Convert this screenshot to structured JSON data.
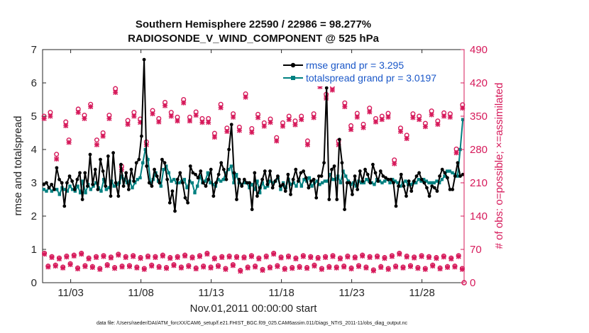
{
  "chart_data": {
    "type": "line",
    "title_line1": "Southern Hemisphere 22590 / 22986 = 98.277%",
    "title_line2": "RADIOSONDE_V_WIND_COMPONENT @ 525 hPa",
    "xlabel": "Nov.01,2011 00:00:00 start",
    "ylabel_left": "rmse and totalspread",
    "ylabel_right": "# of obs: o=possible; ×=assimilated",
    "footnote": "data file: /Users/raeder/DAI/ATM_forcXX/CAM6_setup/f.e21.FHIST_BGC.f09_025.CAM6assim.011/Diags_NTrS_2011-11/obs_diag_output.nc",
    "xlim": [
      1,
      31
    ],
    "ylim_left": [
      0,
      7
    ],
    "ylim_right": [
      0,
      490
    ],
    "x_ticks": [
      {
        "value": 3,
        "label": "11/03"
      },
      {
        "value": 8,
        "label": "11/08"
      },
      {
        "value": 13,
        "label": "11/13"
      },
      {
        "value": 18,
        "label": "11/18"
      },
      {
        "value": 23,
        "label": "11/23"
      },
      {
        "value": 28,
        "label": "11/28"
      }
    ],
    "y_ticks_left": [
      "0",
      "1",
      "2",
      "3",
      "4",
      "5",
      "6",
      "7"
    ],
    "y_ticks_right": [
      "0",
      "70",
      "140",
      "210",
      "280",
      "350",
      "420",
      "490"
    ],
    "colors": {
      "rmse": "#000000",
      "spread": "#008080",
      "obs": "#d6195a",
      "legend_text": "#1a57c8"
    },
    "series": [
      {
        "name": "rmse grand pr = 3.295",
        "values": [
          2.95,
          3.0,
          2.85,
          2.95,
          2.8,
          3.45,
          3.1,
          3.0,
          2.3,
          3.0,
          3.2,
          3.05,
          2.8,
          3.1,
          3.3,
          2.5,
          3.3,
          2.9,
          3.85,
          2.95,
          3.4,
          2.8,
          3.7,
          3.35,
          2.9,
          3.8,
          2.6,
          3.9,
          3.0,
          2.6,
          3.55,
          2.9,
          3.3,
          2.8,
          3.4,
          3.05,
          3.6,
          3.7,
          4.4,
          6.7,
          3.5,
          3.0,
          2.9,
          3.4,
          3.2,
          3.0,
          3.7,
          3.6,
          3.1,
          2.4,
          2.75,
          2.15,
          3.1,
          3.3,
          3.0,
          2.55,
          2.4,
          3.5,
          3.3,
          3.25,
          3.15,
          3.35,
          3.0,
          2.9,
          3.1,
          3.4,
          2.6,
          3.0,
          3.25,
          3.6,
          3.4,
          3.1,
          4.0,
          4.75,
          3.3,
          2.5,
          3.1,
          2.9,
          3.1,
          3.0,
          3.0,
          2.2,
          3.3,
          2.6,
          2.85,
          3.1,
          3.35,
          2.95,
          3.35,
          2.85,
          3.05,
          3.2,
          2.9,
          2.95,
          2.75,
          3.25,
          2.65,
          3.1,
          3.4,
          3.05,
          3.3,
          3.35,
          3.15,
          2.85,
          3.05,
          3.1,
          2.55,
          3.2,
          3.2,
          3.6,
          5.85,
          2.5,
          3.4,
          3.5,
          2.5,
          4.3,
          3.6,
          2.2,
          3.0,
          3.0,
          2.65,
          3.2,
          2.8,
          3.35,
          3.05,
          3.4,
          3.25,
          3.0,
          3.55,
          3.3,
          3.05,
          3.35,
          3.2,
          3.15,
          3.1,
          3.1,
          3.0,
          2.3,
          2.9,
          3.25,
          2.9,
          2.6,
          3.05,
          2.75,
          3.05,
          3.2,
          3.3,
          3.1,
          3.0,
          2.85,
          2.6,
          2.9,
          2.85,
          2.75,
          3.2,
          3.4,
          3.3,
          3.15,
          2.8,
          2.8,
          3.2,
          3.6,
          3.2,
          3.25
        ]
      },
      {
        "name": "totalspread grand pr = 3.0197",
        "values": [
          2.8,
          2.75,
          2.85,
          2.75,
          2.8,
          2.8,
          2.65,
          2.85,
          2.8,
          2.75,
          2.9,
          2.8,
          2.75,
          2.9,
          2.7,
          3.05,
          2.7,
          2.95,
          2.8,
          2.9,
          3.0,
          2.85,
          2.75,
          3.1,
          2.8,
          2.85,
          3.05,
          2.9,
          2.95,
          3.0,
          3.2,
          3.1,
          3.0,
          3.05,
          2.85,
          3.0,
          3.1,
          3.15,
          3.6,
          4.0,
          3.7,
          3.0,
          3.1,
          3.3,
          3.05,
          2.9,
          3.4,
          3.5,
          3.3,
          3.05,
          3.1,
          3.0,
          3.0,
          3.05,
          3.1,
          2.85,
          3.05,
          3.0,
          2.7,
          2.9,
          3.2,
          3.0,
          3.05,
          3.3,
          3.0,
          2.95,
          2.9,
          3.1,
          3.05,
          3.1,
          3.3,
          3.4,
          3.5,
          3.0,
          3.25,
          3.0,
          2.95,
          3.0,
          3.0,
          2.85,
          2.95,
          2.8,
          3.05,
          2.7,
          3.0,
          2.85,
          2.9,
          3.05,
          3.0,
          3.05,
          3.15,
          2.8,
          3.0,
          2.85,
          3.1,
          2.95,
          3.0,
          2.9,
          3.1,
          2.9,
          3.1,
          3.05,
          3.15,
          2.9,
          3.0,
          3.05,
          2.95,
          3.0,
          3.05,
          3.05,
          3.25,
          3.1,
          3.1,
          3.2,
          3.0,
          3.35,
          3.2,
          3.05,
          2.95,
          3.0,
          2.9,
          3.05,
          3.0,
          3.0,
          3.1,
          3.05,
          3.0,
          2.95,
          3.1,
          3.05,
          3.0,
          3.05,
          3.1,
          3.0,
          3.1,
          3.05,
          3.0,
          2.9,
          3.0,
          3.05,
          2.95,
          2.95,
          3.0,
          3.0,
          3.1,
          3.05,
          3.1,
          3.05,
          3.0,
          3.0,
          3.0,
          3.05,
          3.0,
          3.1,
          3.2,
          3.35,
          3.35,
          3.3,
          3.25,
          3.2,
          4.0,
          4.9
        ]
      }
    ],
    "obs_possible_upper": [
      350,
      null,
      358,
      null,
      270,
      null,
      null,
      338,
      300,
      null,
      null,
      365,
      null,
      352,
      null,
      375,
      null,
      300,
      null,
      315,
      null,
      352,
      null,
      408,
      null,
      245,
      null,
      341,
      null,
      358,
      null,
      344,
      null,
      296,
      null,
      362,
      null,
      345,
      null,
      379,
      null,
      358,
      null,
      348,
      null,
      385,
      null,
      348,
      null,
      359,
      null,
      345,
      null,
      345,
      null,
      314,
      null,
      375,
      null,
      325,
      null,
      355,
      null,
      327,
      null,
      397,
      null,
      324,
      null,
      354,
      null,
      336,
      null,
      344,
      null,
      305,
      null,
      336,
      null,
      350,
      null,
      340,
      null,
      350,
      null,
      298,
      null,
      355,
      null,
      420,
      null,
      396,
      null,
      413,
      null,
      298,
      null,
      378,
      null,
      330,
      null,
      356,
      null,
      333,
      null,
      367,
      null,
      345,
      null,
      350,
      null,
      356,
      null,
      258,
      null,
      325,
      null,
      310,
      null,
      355,
      null,
      350,
      null,
      335,
      null,
      361,
      null,
      340,
      null,
      357,
      null,
      355,
      null,
      281,
      null,
      374
    ],
    "obs_assimilated_upper": [
      345,
      null,
      350,
      null,
      260,
      null,
      null,
      330,
      295,
      null,
      null,
      358,
      null,
      345,
      null,
      370,
      null,
      290,
      null,
      308,
      null,
      345,
      null,
      400,
      null,
      238,
      null,
      333,
      null,
      350,
      null,
      337,
      null,
      290,
      null,
      355,
      null,
      338,
      null,
      372,
      null,
      350,
      null,
      340,
      null,
      378,
      null,
      340,
      null,
      352,
      null,
      337,
      null,
      337,
      null,
      306,
      null,
      368,
      null,
      318,
      null,
      348,
      null,
      320,
      null,
      390,
      null,
      316,
      null,
      347,
      null,
      329,
      null,
      337,
      null,
      298,
      null,
      329,
      null,
      343,
      null,
      332,
      null,
      343,
      null,
      290,
      null,
      347,
      null,
      412,
      null,
      388,
      null,
      405,
      null,
      290,
      null,
      370,
      null,
      322,
      null,
      348,
      null,
      326,
      null,
      359,
      null,
      338,
      null,
      343,
      null,
      348,
      null,
      250,
      null,
      318,
      null,
      303,
      null,
      347,
      null,
      343,
      null,
      328,
      null,
      353,
      null,
      333,
      null,
      350,
      null,
      348,
      null,
      273,
      null,
      367
    ],
    "obs_possible_lower": [
      62,
      35,
      55,
      37,
      52,
      33,
      56,
      40,
      58,
      31,
      62,
      36,
      52,
      34,
      55,
      30,
      57,
      38,
      54,
      32,
      60,
      35,
      55,
      36,
      57,
      33,
      53,
      30,
      56,
      37,
      55,
      34,
      58,
      32,
      53,
      38,
      55,
      33,
      58,
      36,
      54,
      31,
      57,
      35,
      62,
      33,
      52,
      36,
      55,
      30,
      56,
      38,
      55,
      26,
      54,
      33,
      57,
      35,
      52,
      28,
      56,
      33,
      62,
      36,
      54,
      30,
      56,
      32,
      52,
      34,
      57,
      32,
      55,
      37,
      53,
      30,
      55,
      34,
      57,
      33,
      52,
      35,
      56,
      31,
      54,
      36,
      58,
      33,
      55,
      27,
      56,
      34,
      53,
      30,
      57,
      35,
      62,
      33,
      56,
      36,
      54,
      32,
      57,
      30,
      55,
      37,
      53,
      31,
      56,
      34,
      52,
      35,
      57,
      30
    ],
    "obs_assimilated_lower": [
      60,
      33,
      53,
      35,
      50,
      31,
      54,
      38,
      56,
      29,
      60,
      34,
      50,
      32,
      53,
      28,
      55,
      36,
      52,
      30,
      58,
      33,
      53,
      34,
      55,
      31,
      51,
      28,
      54,
      35,
      53,
      32,
      56,
      30,
      51,
      36,
      53,
      31,
      56,
      34,
      52,
      29,
      55,
      33,
      60,
      31,
      50,
      34,
      53,
      28,
      54,
      36,
      53,
      24,
      52,
      31,
      55,
      33,
      50,
      26,
      54,
      31,
      60,
      34,
      52,
      28,
      54,
      30,
      50,
      32,
      55,
      30,
      53,
      35,
      51,
      28,
      53,
      32,
      55,
      31,
      50,
      33,
      54,
      29,
      52,
      34,
      56,
      31,
      53,
      25,
      54,
      32,
      51,
      28,
      55,
      33,
      60,
      31,
      54,
      34,
      52,
      30,
      55,
      28,
      53,
      35,
      51,
      29,
      54,
      32,
      50,
      33,
      55,
      28
    ]
  }
}
